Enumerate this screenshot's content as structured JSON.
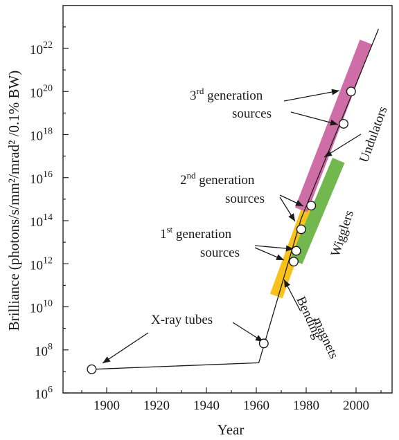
{
  "chart_data": {
    "type": "line",
    "title": "",
    "xlabel": "Year",
    "ylabel": "Brilliance (photons/s/mm²/mrad² /0.1% BW)",
    "xlim": [
      1880,
      2015
    ],
    "ylim_log10": [
      6,
      23.5
    ],
    "y_scale": "log",
    "grid": false,
    "x_ticks": [
      1900,
      1920,
      1940,
      1960,
      1980,
      2000
    ],
    "y_ticks_exp": [
      6,
      8,
      10,
      12,
      14,
      16,
      18,
      20,
      22
    ],
    "trend_line": [
      {
        "year": 1894,
        "log10": 7.1
      },
      {
        "year": 1961,
        "log10": 7.4
      },
      {
        "year": 1978,
        "log10": 14.1
      },
      {
        "year": 2009,
        "log10": 22.9
      }
    ],
    "points": [
      {
        "year": 1894,
        "log10": 7.1
      },
      {
        "year": 1963,
        "log10": 8.3
      },
      {
        "year": 1975,
        "log10": 12.1
      },
      {
        "year": 1976,
        "log10": 12.6
      },
      {
        "year": 1978,
        "log10": 13.6
      },
      {
        "year": 1982,
        "log10": 14.7
      },
      {
        "year": 1995,
        "log10": 18.5
      },
      {
        "year": 1998,
        "log10": 20.0
      }
    ],
    "bands": [
      {
        "name": "Bending magnets",
        "color": "#f9c21a",
        "from": [
          1968,
          10.5
        ],
        "to": [
          1981,
          14.6
        ]
      },
      {
        "name": "Wigglers",
        "color": "#72b84f",
        "from": [
          1976,
          12.1
        ],
        "to": [
          1993,
          16.8
        ]
      },
      {
        "name": "Undulators",
        "color": "#cf6ea6",
        "from": [
          1978,
          14.5
        ],
        "to": [
          2004,
          22.3
        ]
      }
    ],
    "annotations": {
      "xray_tubes": "X-ray tubes",
      "gen1_line1_sup": "st",
      "gen1_line1_rest": " generation",
      "gen1_num": "1",
      "gen2_num": "2",
      "gen2_sup": "nd",
      "gen2_rest": " generation",
      "gen3_num": "3",
      "gen3_sup": "rd",
      "gen3_rest": " generation",
      "sources": "sources",
      "bending_line1": "Bending",
      "bending_line2": "magnets",
      "wigglers": "Wigglers",
      "undulators": "Undulators"
    }
  }
}
